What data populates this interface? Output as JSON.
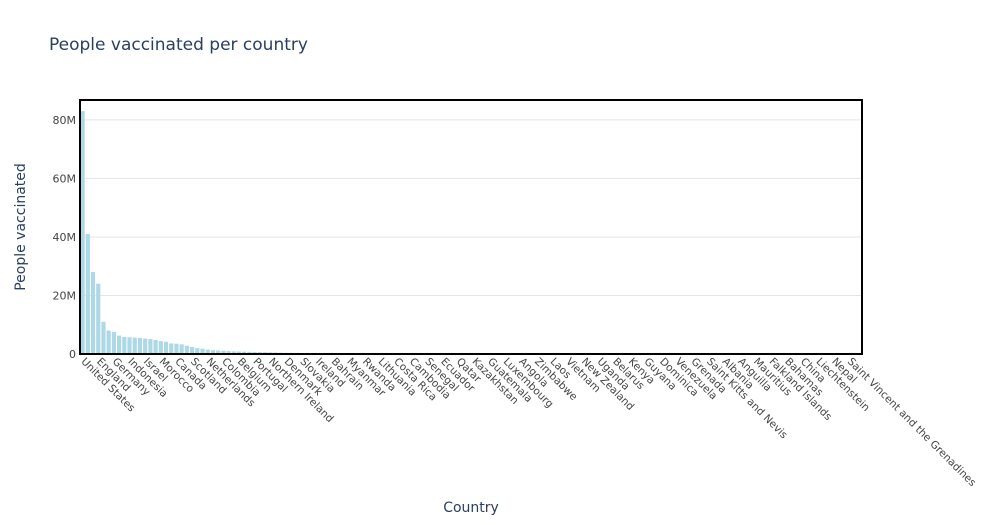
{
  "chart_data": {
    "type": "bar",
    "title": "People vaccinated per country",
    "x_label": "Country",
    "y_label": "People vaccinated",
    "categories": [
      "United States",
      null,
      null,
      "England",
      null,
      null,
      "Germany",
      null,
      null,
      "Indonesia",
      null,
      null,
      "Israel",
      null,
      null,
      "Morocco",
      null,
      null,
      "Canada",
      null,
      null,
      "Scotland",
      null,
      null,
      "Netherlands",
      null,
      null,
      "Colombia",
      null,
      null,
      "Belgium",
      null,
      null,
      "Portugal",
      null,
      null,
      "Northern Ireland",
      null,
      null,
      "Denmark",
      null,
      null,
      "Slovakia",
      null,
      null,
      "Ireland",
      null,
      null,
      "Bahrain",
      null,
      null,
      "Myanmar",
      null,
      null,
      "Rwanda",
      null,
      null,
      "Lithuania",
      null,
      null,
      "Costa Rica",
      null,
      null,
      "Cambodia",
      null,
      null,
      "Senegal",
      null,
      null,
      "Ecuador",
      null,
      null,
      "Qatar",
      null,
      null,
      "Kazakhstan",
      null,
      null,
      "Guatemala",
      null,
      null,
      "Luxembourg",
      null,
      null,
      "Angola",
      null,
      null,
      "Zimbabwe",
      null,
      null,
      "Laos",
      null,
      null,
      "Vietnam",
      null,
      null,
      "New Zealand",
      null,
      null,
      "Uganda",
      null,
      null,
      "Belarus",
      null,
      null,
      "Kenya",
      null,
      null,
      "Guyana",
      null,
      null,
      "Dominica",
      null,
      null,
      "Venezuela",
      null,
      null,
      "Grenada",
      null,
      null,
      "Saint Kitts and Nevis",
      null,
      null,
      "Albania",
      null,
      null,
      "Anguilla",
      null,
      null,
      "Mauritius",
      null,
      null,
      "Falkland Islands",
      null,
      null,
      "Bahamas",
      null,
      null,
      "China",
      null,
      null,
      "Liechtenstein",
      null,
      null,
      "Nepal",
      null,
      null,
      "Saint Vincent and the Grenadines",
      null,
      null
    ],
    "values": [
      83000000,
      41000000,
      28000000,
      24000000,
      11000000,
      8000000,
      7500000,
      6300000,
      5800000,
      5700000,
      5600000,
      5500000,
      5300000,
      5100000,
      4800000,
      4400000,
      4200000,
      3600000,
      3500000,
      3300000,
      2800000,
      2400000,
      2000000,
      1800000,
      1500000,
      1300000,
      1200000,
      1100000,
      1000000,
      900000,
      850000,
      800000,
      750000,
      700000,
      650000,
      600000,
      550000,
      500000,
      450000,
      400000,
      380000,
      360000,
      340000,
      320000,
      300000,
      280000,
      260000,
      240000,
      220000,
      200000,
      190000,
      180000,
      170000,
      160000,
      150000,
      140000,
      130000,
      120000,
      110000,
      100000,
      95000,
      90000,
      85000,
      80000,
      75000,
      70000,
      65000,
      60000,
      55000,
      50000,
      48000,
      46000,
      44000,
      42000,
      40000,
      38000,
      36000,
      34000,
      32000,
      30000,
      28000,
      26000,
      24000,
      22000,
      20000,
      19000,
      18000,
      17000,
      16000,
      15000,
      14000,
      13000,
      12000,
      11000,
      10000,
      9500,
      9000,
      8500,
      8000,
      7500,
      7000,
      6500,
      6000,
      5500,
      5000,
      4800,
      4600,
      4400,
      4200,
      4000,
      3800,
      3600,
      3400,
      3200,
      3000,
      2800,
      2600,
      2400,
      2200,
      2000,
      1900,
      1800,
      1700,
      1600,
      1500,
      1400,
      1300,
      1200,
      1100,
      1000,
      950,
      900,
      850,
      800,
      750,
      700,
      650,
      600,
      550,
      500,
      450,
      400,
      350,
      300,
      250,
      200,
      150,
      100,
      80,
      50
    ],
    "color": "#add8e6",
    "ylim": [
      0,
      86800000
    ],
    "yticks": [
      0,
      {
        "value": 20000000,
        "label": "20M"
      },
      {
        "value": 40000000,
        "label": "40M"
      },
      {
        "value": 60000000,
        "label": "60M"
      },
      {
        "value": 80000000,
        "label": "80M"
      }
    ],
    "grid": true
  }
}
